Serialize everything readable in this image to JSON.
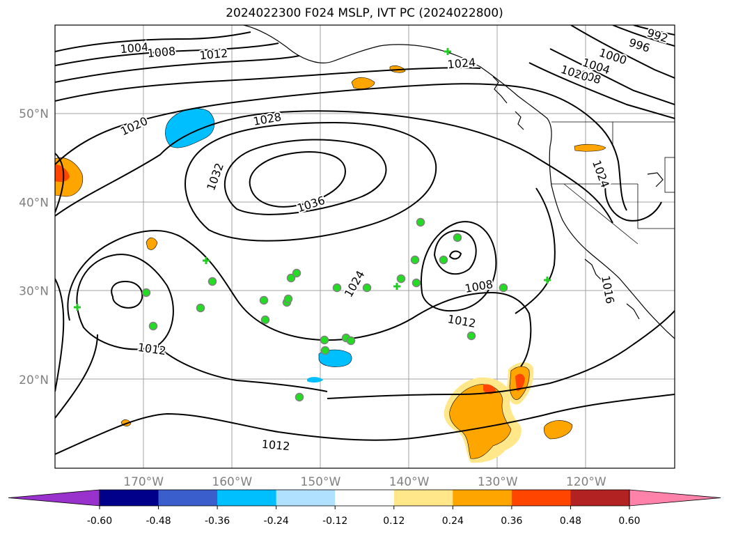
{
  "title": "2024022300 F024 MSLP, IVT PC (2024022800)",
  "map": {
    "lon_range": [
      -180,
      -110
    ],
    "lat_range": [
      10,
      60
    ],
    "lon_ticks": [
      {
        "lon": -170,
        "label": "170°W"
      },
      {
        "lon": -160,
        "label": "160°W"
      },
      {
        "lon": -150,
        "label": "150°W"
      },
      {
        "lon": -140,
        "label": "140°W"
      },
      {
        "lon": -130,
        "label": "130°W"
      },
      {
        "lon": -120,
        "label": "120°W"
      }
    ],
    "lat_ticks": [
      {
        "lat": 50,
        "label": "50°N"
      },
      {
        "lat": 40,
        "label": "40°N"
      },
      {
        "lat": 30,
        "label": "30°N"
      },
      {
        "lat": 20,
        "label": "20°N"
      }
    ],
    "gridlines": true,
    "isobar_color": "#000000",
    "isobar_labels": [
      "1004",
      "1008",
      "1012",
      "1020",
      "1024",
      "1016",
      "1000",
      "996",
      "992",
      "1004",
      "1008",
      "1020",
      "1028",
      "1032",
      "1036",
      "1020",
      "1024",
      "1024",
      "1008",
      "1012",
      "1016",
      "1012",
      "1012"
    ],
    "station_marker_color": "#22dd22"
  },
  "colorbar": {
    "levels": [
      "-0.60",
      "-0.48",
      "-0.36",
      "-0.24",
      "-0.12",
      "0.12",
      "0.24",
      "0.36",
      "0.48",
      "0.60"
    ],
    "colors": [
      "#9932CC",
      "#00008B",
      "#3A5FCD",
      "#00BFFF",
      "#B0E2FF",
      "#FFFFFF",
      "#FFE78A",
      "#FFA500",
      "#FF4500",
      "#B22222",
      "#FF82AB"
    ]
  }
}
